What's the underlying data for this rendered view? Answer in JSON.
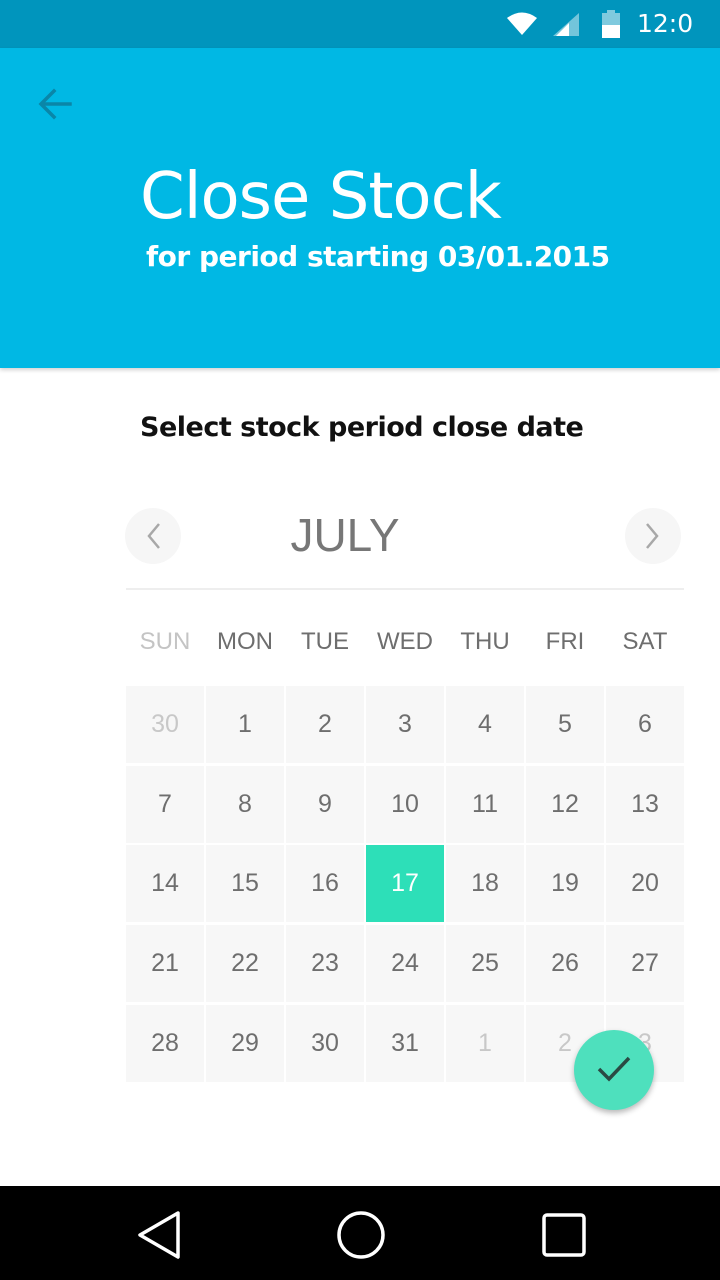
{
  "status_bar": {
    "time": "12:0",
    "icons": [
      "wifi-icon",
      "signal-icon",
      "battery-icon"
    ]
  },
  "header": {
    "back_icon": "arrow-left-icon",
    "title": "Close Stock",
    "subtitle": "for period starting 03/01.2015",
    "background": "#00b8e4"
  },
  "content": {
    "prompt": "Select stock period close date"
  },
  "calendar": {
    "month": "JULY",
    "prev_icon": "chevron-left-icon",
    "next_icon": "chevron-right-icon",
    "weekdays": [
      "SUN",
      "MON",
      "TUE",
      "WED",
      "THU",
      "FRI",
      "SAT"
    ],
    "weeks": [
      [
        "30",
        "1",
        "2",
        "3",
        "4",
        "5",
        "6"
      ],
      [
        "7",
        "8",
        "9",
        "10",
        "11",
        "12",
        "13"
      ],
      [
        "14",
        "15",
        "16",
        "17",
        "18",
        "19",
        "20"
      ],
      [
        "21",
        "22",
        "23",
        "24",
        "25",
        "26",
        "27"
      ],
      [
        "28",
        "29",
        "30",
        "31",
        "1",
        "2",
        "3"
      ]
    ],
    "selected_day": "17",
    "selected_color": "#2ddfb8"
  },
  "fab": {
    "icon": "check-icon",
    "color": "#4ee0bd"
  },
  "nav_bar": {
    "icons": [
      "nav-back-icon",
      "nav-home-icon",
      "nav-recents-icon"
    ]
  }
}
